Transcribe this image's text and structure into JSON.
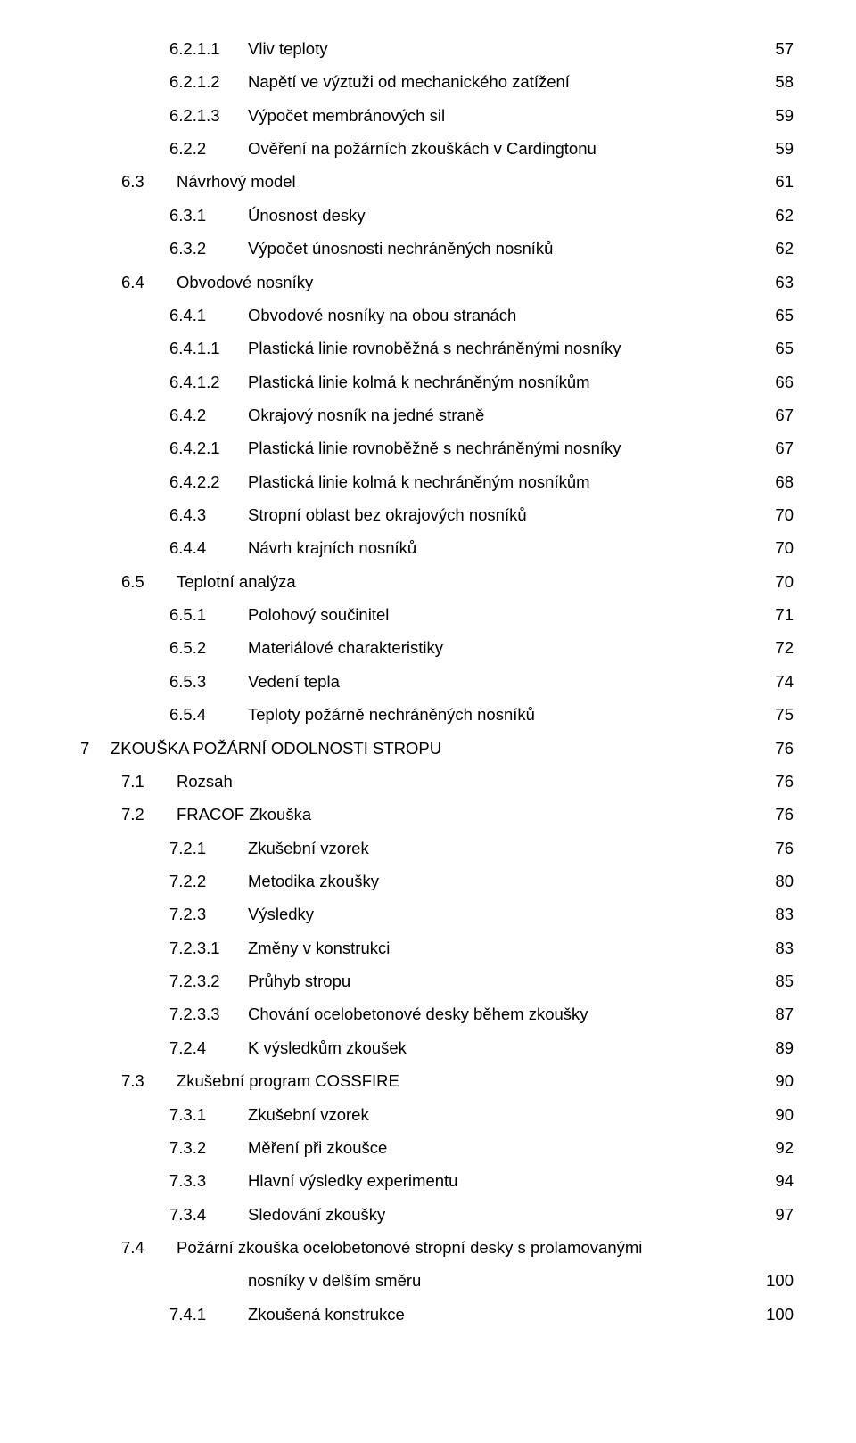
{
  "entries": [
    {
      "indent": 2,
      "numw": "num-w2",
      "num": "6.2.1.1",
      "title": "Vliv teploty",
      "page": "57"
    },
    {
      "indent": 2,
      "numw": "num-w2",
      "num": "6.2.1.2",
      "title": "Napětí ve výztuži od mechanického zatížení",
      "page": "58"
    },
    {
      "indent": 2,
      "numw": "num-w2",
      "num": "6.2.1.3",
      "title": "Výpočet membránových sil",
      "page": "59"
    },
    {
      "indent": 2,
      "numw": "num-w2",
      "num": "6.2.2",
      "title": "Ověření na požárních zkouškách v Cardingtonu",
      "page": "59"
    },
    {
      "indent": 1,
      "numw": "num-w1",
      "num": "6.3",
      "title": "Návrhový model",
      "page": "61"
    },
    {
      "indent": 2,
      "numw": "num-w2",
      "num": "6.3.1",
      "title": "Únosnost desky",
      "page": "62"
    },
    {
      "indent": 2,
      "numw": "num-w2",
      "num": "6.3.2",
      "title": "Výpočet únosnosti nechráněných nosníků",
      "page": "62"
    },
    {
      "indent": 1,
      "numw": "num-w1",
      "num": "6.4",
      "title": "Obvodové nosníky",
      "page": "63"
    },
    {
      "indent": 2,
      "numw": "num-w2",
      "num": "6.4.1",
      "title": "Obvodové nosníky na obou stranách",
      "page": "65"
    },
    {
      "indent": 2,
      "numw": "num-w2",
      "num": "6.4.1.1",
      "title": "Plastická linie rovnoběžná s nechráněnými nosníky",
      "page": "65"
    },
    {
      "indent": 2,
      "numw": "num-w2",
      "num": "6.4.1.2",
      "title": "Plastická linie kolmá k nechráněným nosníkům",
      "page": "66"
    },
    {
      "indent": 2,
      "numw": "num-w2",
      "num": "6.4.2",
      "title": "Okrajový nosník na jedné straně",
      "page": "67"
    },
    {
      "indent": 2,
      "numw": "num-w2",
      "num": "6.4.2.1",
      "title": "Plastická linie rovnoběžně s nechráněnými nosníky",
      "page": "67"
    },
    {
      "indent": 2,
      "numw": "num-w2",
      "num": "6.4.2.2",
      "title": "Plastická linie kolmá k nechráněným nosníkům",
      "page": "68"
    },
    {
      "indent": 2,
      "numw": "num-w2",
      "num": "6.4.3",
      "title": "Stropní oblast bez okrajových nosníků",
      "page": "70"
    },
    {
      "indent": 2,
      "numw": "num-w2",
      "num": "6.4.4",
      "title": "Návrh krajních nosníků",
      "page": "70"
    },
    {
      "indent": 1,
      "numw": "num-w1",
      "num": "6.5",
      "title": "Teplotní analýza",
      "page": "70"
    },
    {
      "indent": 2,
      "numw": "num-w2",
      "num": "6.5.1",
      "title": "Polohový součinitel",
      "page": "71"
    },
    {
      "indent": 2,
      "numw": "num-w2",
      "num": "6.5.2",
      "title": "Materiálové charakteristiky",
      "page": "72"
    },
    {
      "indent": 2,
      "numw": "num-w2",
      "num": "6.5.3",
      "title": "Vedení tepla",
      "page": "74"
    },
    {
      "indent": 2,
      "numw": "num-w2",
      "num": "6.5.4",
      "title": "Teploty požárně nechráněných nosníků",
      "page": "75"
    },
    {
      "indent": 0,
      "numw": "num-w0",
      "num": "7",
      "title": "ZKOUŠKA POŽÁRNÍ ODOLNOSTI STROPU",
      "page": "76"
    },
    {
      "indent": 1,
      "numw": "num-w1",
      "num": "7.1",
      "title": "Rozsah",
      "page": "76"
    },
    {
      "indent": 1,
      "numw": "num-w1",
      "num": "7.2",
      "title": "FRACOF Zkouška",
      "page": "76"
    },
    {
      "indent": 2,
      "numw": "num-w2",
      "num": "7.2.1",
      "title": "Zkušební vzorek",
      "page": "76"
    },
    {
      "indent": 2,
      "numw": "num-w2",
      "num": "7.2.2",
      "title": "Metodika zkoušky",
      "page": "80"
    },
    {
      "indent": 2,
      "numw": "num-w2",
      "num": "7.2.3",
      "title": "Výsledky",
      "page": "83"
    },
    {
      "indent": 2,
      "numw": "num-w2",
      "num": "7.2.3.1",
      "title": "Změny v konstrukci",
      "page": "83"
    },
    {
      "indent": 2,
      "numw": "num-w2",
      "num": "7.2.3.2",
      "title": "Průhyb stropu",
      "page": "85"
    },
    {
      "indent": 2,
      "numw": "num-w2",
      "num": "7.2.3.3",
      "title": "Chování ocelobetonové desky během zkoušky",
      "page": "87"
    },
    {
      "indent": 2,
      "numw": "num-w2",
      "num": "7.2.4",
      "title": "K výsledkům zkoušek",
      "page": "89"
    },
    {
      "indent": 1,
      "numw": "num-w1",
      "num": "7.3",
      "title": "Zkušební program COSSFIRE",
      "page": "90"
    },
    {
      "indent": 2,
      "numw": "num-w2",
      "num": "7.3.1",
      "title": "Zkušební vzorek",
      "page": "90"
    },
    {
      "indent": 2,
      "numw": "num-w2",
      "num": "7.3.2",
      "title": "Měření při zkoušce",
      "page": "92"
    },
    {
      "indent": 2,
      "numw": "num-w2",
      "num": "7.3.3",
      "title": "Hlavní výsledky experimentu",
      "page": "94"
    },
    {
      "indent": 2,
      "numw": "num-w2",
      "num": "7.3.4",
      "title": "Sledování zkoušky",
      "page": "97"
    },
    {
      "indent": 1,
      "numw": "num-w1",
      "num": "7.4",
      "title": "Požární zkouška ocelobetonové stropní desky s prolamovanými",
      "page": ""
    },
    {
      "indent": 2,
      "numw": "num-w2",
      "num": "",
      "title": "nosníky v delším směru",
      "page": "100"
    },
    {
      "indent": 2,
      "numw": "num-w2",
      "num": "7.4.1",
      "title": "Zkoušená konstrukce",
      "page": "100"
    }
  ]
}
